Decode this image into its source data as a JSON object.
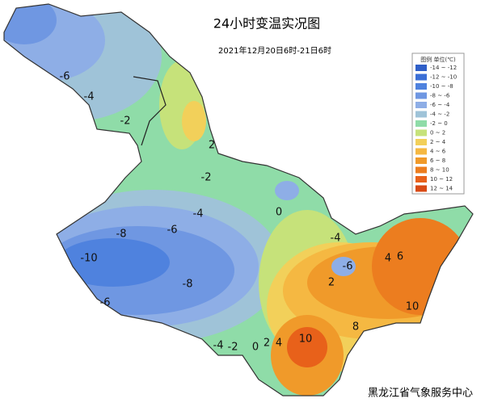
{
  "title": "24小时变温实况图",
  "subtitle": "2021年12月20日6时-21日6时",
  "legend": {
    "title": "图例 单位(℃)",
    "items": [
      {
        "label": "-14 ~ -12",
        "color": "#2f5fc8"
      },
      {
        "label": "-12 ~ -10",
        "color": "#3b6fd6"
      },
      {
        "label": "-10 ~ -8",
        "color": "#4f82de"
      },
      {
        "label": "-8 ~ -6",
        "color": "#6f97e2"
      },
      {
        "label": "-6 ~ -4",
        "color": "#8eaee6"
      },
      {
        "label": "-4 ~ -2",
        "color": "#9fc3d8"
      },
      {
        "label": "-2 ~ 0",
        "color": "#8fdca8"
      },
      {
        "label": "0 ~ 2",
        "color": "#c6e27a"
      },
      {
        "label": "2 ~ 4",
        "color": "#f2d05a"
      },
      {
        "label": "4 ~ 6",
        "color": "#f5b842"
      },
      {
        "label": "6 ~ 8",
        "color": "#f09a2a"
      },
      {
        "label": "8 ~ 10",
        "color": "#ec7d1f"
      },
      {
        "label": "10 ~ 12",
        "color": "#e8611a"
      },
      {
        "label": "12 ~ 14",
        "color": "#d94a14"
      }
    ]
  },
  "contour_labels": [
    "-6",
    "-4",
    "-2",
    "2",
    "-2",
    "-4",
    "-6",
    "-8",
    "-10",
    "-8",
    "-6",
    "0",
    "2",
    "4",
    "6",
    "10",
    "8",
    "10",
    "-4",
    "-2",
    "0",
    "2",
    "4",
    "-4",
    "-6"
  ],
  "footer": "黑龙江省气象服务中心"
}
